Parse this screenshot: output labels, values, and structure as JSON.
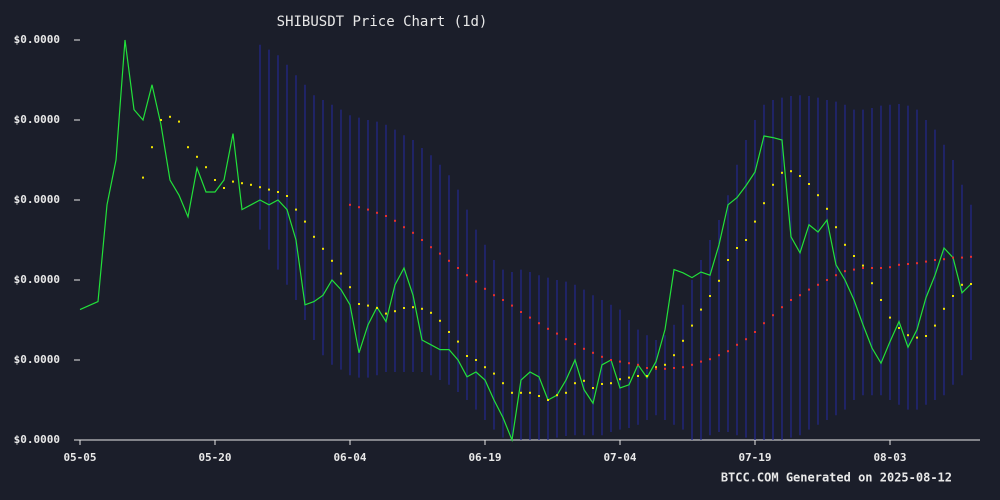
{
  "chart_data": {
    "type": "line",
    "title": "SHIBUSDT Price Chart (1d)",
    "footer": "BTCC.COM Generated on 2025-08-12",
    "x": [
      "05-05",
      "05-06",
      "05-07",
      "05-08",
      "05-09",
      "05-10",
      "05-11",
      "05-12",
      "05-13",
      "05-14",
      "05-15",
      "05-16",
      "05-17",
      "05-18",
      "05-19",
      "05-20",
      "05-21",
      "05-22",
      "05-23",
      "05-24",
      "05-25",
      "05-26",
      "05-27",
      "05-28",
      "05-29",
      "05-30",
      "05-31",
      "06-01",
      "06-02",
      "06-03",
      "06-04",
      "06-05",
      "06-06",
      "06-07",
      "06-08",
      "06-09",
      "06-10",
      "06-11",
      "06-12",
      "06-13",
      "06-14",
      "06-15",
      "06-16",
      "06-17",
      "06-18",
      "06-19",
      "06-20",
      "06-21",
      "06-22",
      "06-23",
      "06-24",
      "06-25",
      "06-26",
      "06-27",
      "06-28",
      "06-29",
      "06-30",
      "07-01",
      "07-02",
      "07-03",
      "07-04",
      "07-05",
      "07-06",
      "07-07",
      "07-08",
      "07-09",
      "07-10",
      "07-11",
      "07-12",
      "07-13",
      "07-14",
      "07-15",
      "07-16",
      "07-17",
      "07-18",
      "07-19",
      "07-20",
      "07-21",
      "07-22",
      "07-23",
      "07-24",
      "07-25",
      "07-26",
      "07-27",
      "07-28",
      "07-29",
      "07-30",
      "07-31",
      "08-01",
      "08-02",
      "08-03",
      "08-04",
      "08-05",
      "08-06",
      "08-07",
      "08-08",
      "08-09",
      "08-10",
      "08-11",
      "08-12"
    ],
    "xticks": [
      "05-05",
      "05-20",
      "06-04",
      "06-19",
      "07-04",
      "07-19",
      "08-03"
    ],
    "ylim": [
      1.1e-05,
      1.6e-05
    ],
    "yticks": [
      {
        "value": 1.1e-05,
        "label": "$0.0000"
      },
      {
        "value": 1.2e-05,
        "label": "$0.0000"
      },
      {
        "value": 1.3e-05,
        "label": "$0.0000"
      },
      {
        "value": 1.4e-05,
        "label": "$0.0000"
      },
      {
        "value": 1.5e-05,
        "label": "$0.0000"
      },
      {
        "value": 1.6e-05,
        "label": "$0.0000"
      }
    ],
    "grid": false,
    "bands": {
      "color": "#23288f",
      "upper": [
        null,
        null,
        null,
        null,
        null,
        null,
        null,
        null,
        null,
        null,
        null,
        null,
        null,
        null,
        null,
        null,
        null,
        null,
        null,
        null,
        1.594e-05,
        1.588e-05,
        1.581e-05,
        1.569e-05,
        1.556e-05,
        1.544e-05,
        1.531e-05,
        1.525e-05,
        1.519e-05,
        1.513e-05,
        1.506e-05,
        1.503e-05,
        1.5e-05,
        1.498e-05,
        1.494e-05,
        1.488e-05,
        1.481e-05,
        1.475e-05,
        1.465e-05,
        1.456e-05,
        1.444e-05,
        1.431e-05,
        1.413e-05,
        1.388e-05,
        1.363e-05,
        1.344e-05,
        1.325e-05,
        1.313e-05,
        1.31e-05,
        1.313e-05,
        1.31e-05,
        1.306e-05,
        1.303e-05,
        1.3e-05,
        1.298e-05,
        1.294e-05,
        1.288e-05,
        1.281e-05,
        1.275e-05,
        1.269e-05,
        1.263e-05,
        1.25e-05,
        1.238e-05,
        1.231e-05,
        1.225e-05,
        1.231e-05,
        1.244e-05,
        1.269e-05,
        1.3e-05,
        1.325e-05,
        1.35e-05,
        1.375e-05,
        1.406e-05,
        1.444e-05,
        1.475e-05,
        1.5e-05,
        1.519e-05,
        1.525e-05,
        1.528e-05,
        1.53e-05,
        1.531e-05,
        1.53e-05,
        1.528e-05,
        1.525e-05,
        1.523e-05,
        1.519e-05,
        1.513e-05,
        1.513e-05,
        1.515e-05,
        1.518e-05,
        1.519e-05,
        1.52e-05,
        1.518e-05,
        1.513e-05,
        1.5e-05,
        1.488e-05,
        1.469e-05,
        1.45e-05,
        1.419e-05,
        1.394e-05
      ],
      "lower": [
        null,
        null,
        null,
        null,
        null,
        null,
        null,
        null,
        null,
        null,
        null,
        null,
        null,
        null,
        null,
        null,
        null,
        null,
        null,
        null,
        1.363e-05,
        1.338e-05,
        1.313e-05,
        1.294e-05,
        1.275e-05,
        1.25e-05,
        1.225e-05,
        1.206e-05,
        1.194e-05,
        1.188e-05,
        1.181e-05,
        1.178e-05,
        1.178e-05,
        1.181e-05,
        1.185e-05,
        1.185e-05,
        1.185e-05,
        1.185e-05,
        1.185e-05,
        1.181e-05,
        1.175e-05,
        1.169e-05,
        1.16e-05,
        1.15e-05,
        1.138e-05,
        1.125e-05,
        1.113e-05,
        1.103e-05,
        1.1e-05,
        1.1e-05,
        1.1e-05,
        1.1e-05,
        1.1e-05,
        1.103e-05,
        1.105e-05,
        1.106e-05,
        1.106e-05,
        1.106e-05,
        1.106e-05,
        1.11e-05,
        1.113e-05,
        1.115e-05,
        1.119e-05,
        1.125e-05,
        1.131e-05,
        1.125e-05,
        1.119e-05,
        1.113e-05,
        1.1e-05,
        1.1e-05,
        1.106e-05,
        1.11e-05,
        1.11e-05,
        1.106e-05,
        1.103e-05,
        1.1e-05,
        1.1e-05,
        1.1e-05,
        1.1e-05,
        1.103e-05,
        1.106e-05,
        1.113e-05,
        1.119e-05,
        1.125e-05,
        1.131e-05,
        1.138e-05,
        1.15e-05,
        1.156e-05,
        1.156e-05,
        1.156e-05,
        1.15e-05,
        1.144e-05,
        1.138e-05,
        1.138e-05,
        1.144e-05,
        1.15e-05,
        1.156e-05,
        1.169e-05,
        1.181e-05,
        1.2e-05
      ]
    },
    "series": [
      {
        "color": "#22e03a",
        "style": "line",
        "values": [
          1.263e-05,
          1.268e-05,
          1.273e-05,
          1.394e-05,
          1.45e-05,
          1.6e-05,
          1.513e-05,
          1.5e-05,
          1.544e-05,
          1.494e-05,
          1.425e-05,
          1.406e-05,
          1.379e-05,
          1.44e-05,
          1.41e-05,
          1.41e-05,
          1.425e-05,
          1.483e-05,
          1.388e-05,
          1.394e-05,
          1.4e-05,
          1.394e-05,
          1.4e-05,
          1.388e-05,
          1.35e-05,
          1.269e-05,
          1.273e-05,
          1.281e-05,
          1.3e-05,
          1.288e-05,
          1.269e-05,
          1.209e-05,
          1.244e-05,
          1.266e-05,
          1.248e-05,
          1.294e-05,
          1.315e-05,
          1.281e-05,
          1.225e-05,
          1.219e-05,
          1.213e-05,
          1.213e-05,
          1.2e-05,
          1.179e-05,
          1.185e-05,
          1.175e-05,
          1.15e-05,
          1.128e-05,
          1.1e-05,
          1.175e-05,
          1.185e-05,
          1.179e-05,
          1.15e-05,
          1.156e-05,
          1.175e-05,
          1.2e-05,
          1.163e-05,
          1.146e-05,
          1.194e-05,
          1.2e-05,
          1.165e-05,
          1.169e-05,
          1.194e-05,
          1.178e-05,
          1.198e-05,
          1.238e-05,
          1.313e-05,
          1.309e-05,
          1.303e-05,
          1.31e-05,
          1.306e-05,
          1.344e-05,
          1.394e-05,
          1.403e-05,
          1.418e-05,
          1.435e-05,
          1.48e-05,
          1.478e-05,
          1.475e-05,
          1.354e-05,
          1.334e-05,
          1.369e-05,
          1.36e-05,
          1.375e-05,
          1.319e-05,
          1.3e-05,
          1.275e-05,
          1.244e-05,
          1.215e-05,
          1.196e-05,
          1.223e-05,
          1.248e-05,
          1.216e-05,
          1.238e-05,
          1.278e-05,
          1.306e-05,
          1.34e-05,
          1.328e-05,
          1.284e-05,
          1.295e-05
        ]
      },
      {
        "color": "#f2e600",
        "style": "dots",
        "values": [
          null,
          null,
          null,
          null,
          null,
          null,
          null,
          1.428e-05,
          1.466e-05,
          1.5e-05,
          1.504e-05,
          1.498e-05,
          1.466e-05,
          1.454e-05,
          1.441e-05,
          1.425e-05,
          1.415e-05,
          1.423e-05,
          1.421e-05,
          1.419e-05,
          1.416e-05,
          1.413e-05,
          1.41e-05,
          1.405e-05,
          1.388e-05,
          1.373e-05,
          1.354e-05,
          1.339e-05,
          1.324e-05,
          1.308e-05,
          1.291e-05,
          1.27e-05,
          1.268e-05,
          1.265e-05,
          1.258e-05,
          1.261e-05,
          1.265e-05,
          1.266e-05,
          1.264e-05,
          1.259e-05,
          1.249e-05,
          1.235e-05,
          1.223e-05,
          1.205e-05,
          1.2e-05,
          1.191e-05,
          1.183e-05,
          1.171e-05,
          1.159e-05,
          1.159e-05,
          1.159e-05,
          1.155e-05,
          1.15e-05,
          1.156e-05,
          1.159e-05,
          1.171e-05,
          1.174e-05,
          1.165e-05,
          1.17e-05,
          1.171e-05,
          1.176e-05,
          1.178e-05,
          1.18e-05,
          1.18e-05,
          1.191e-05,
          1.194e-05,
          1.206e-05,
          1.224e-05,
          1.243e-05,
          1.263e-05,
          1.28e-05,
          1.299e-05,
          1.325e-05,
          1.34e-05,
          1.35e-05,
          1.373e-05,
          1.396e-05,
          1.419e-05,
          1.434e-05,
          1.436e-05,
          1.43e-05,
          1.42e-05,
          1.406e-05,
          1.389e-05,
          1.366e-05,
          1.344e-05,
          1.33e-05,
          1.318e-05,
          1.296e-05,
          1.275e-05,
          1.253e-05,
          1.24e-05,
          1.231e-05,
          1.228e-05,
          1.23e-05,
          1.243e-05,
          1.264e-05,
          1.28e-05,
          1.294e-05,
          1.295e-05
        ]
      },
      {
        "color": "#e8302a",
        "style": "dots",
        "values": [
          null,
          null,
          null,
          null,
          null,
          null,
          null,
          null,
          null,
          null,
          null,
          null,
          null,
          null,
          null,
          null,
          null,
          null,
          null,
          null,
          null,
          null,
          null,
          null,
          null,
          null,
          null,
          null,
          null,
          null,
          1.394e-05,
          1.391e-05,
          1.388e-05,
          1.384e-05,
          1.38e-05,
          1.374e-05,
          1.366e-05,
          1.359e-05,
          1.35e-05,
          1.341e-05,
          1.333e-05,
          1.324e-05,
          1.315e-05,
          1.306e-05,
          1.298e-05,
          1.289e-05,
          1.281e-05,
          1.275e-05,
          1.268e-05,
          1.26e-05,
          1.253e-05,
          1.246e-05,
          1.239e-05,
          1.233e-05,
          1.226e-05,
          1.22e-05,
          1.214e-05,
          1.209e-05,
          1.204e-05,
          1.2e-05,
          1.198e-05,
          1.196e-05,
          1.194e-05,
          1.19e-05,
          1.189e-05,
          1.189e-05,
          1.19e-05,
          1.191e-05,
          1.194e-05,
          1.198e-05,
          1.201e-05,
          1.206e-05,
          1.211e-05,
          1.219e-05,
          1.226e-05,
          1.235e-05,
          1.246e-05,
          1.256e-05,
          1.266e-05,
          1.275e-05,
          1.281e-05,
          1.288e-05,
          1.294e-05,
          1.3e-05,
          1.306e-05,
          1.311e-05,
          1.313e-05,
          1.315e-05,
          1.315e-05,
          1.315e-05,
          1.316e-05,
          1.319e-05,
          1.32e-05,
          1.321e-05,
          1.323e-05,
          1.325e-05,
          1.326e-05,
          1.328e-05,
          1.328e-05,
          1.329e-05
        ]
      }
    ]
  }
}
